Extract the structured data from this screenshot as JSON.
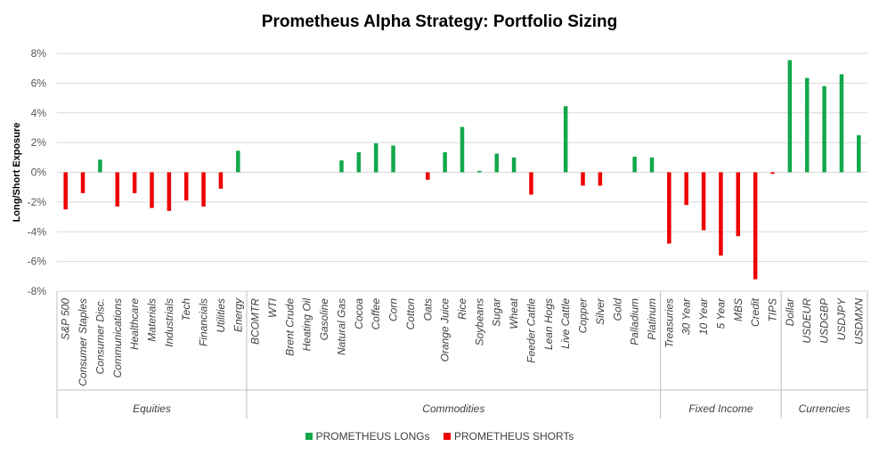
{
  "chart_data": {
    "type": "bar",
    "title": "Prometheus Alpha Strategy: Portfolio Sizing",
    "ylabel": "Long/Short Exposure",
    "ylim": [
      -8,
      8
    ],
    "yticks": [
      8,
      6,
      4,
      2,
      0,
      -2,
      -4,
      -6,
      -8
    ],
    "ytick_labels": [
      "8%",
      "6%",
      "4%",
      "2%",
      "0%",
      "-2%",
      "-4%",
      "-6%",
      "-8%"
    ],
    "grid": true,
    "legend_position": "bottom",
    "colors": {
      "long": "#12a84a",
      "short": "#ee0000"
    },
    "series": [
      {
        "name": "PROMETHEUS LONGs",
        "color": "#12a84a"
      },
      {
        "name": "PROMETHEUS SHORTs",
        "color": "#ee0000"
      }
    ],
    "categories": [
      "S&P 500",
      "Consumer Staples",
      "Consumer Disc.",
      "Communications",
      "Healthcare",
      "Materials",
      "Industrials",
      "Tech",
      "Financials",
      "Utilities",
      "Energy",
      "BCOMTR",
      "WTI",
      "Brent Crude",
      "Heating Oil",
      "Gasoline",
      "Natural Gas",
      "Cocoa",
      "Coffee",
      "Corn",
      "Cotton",
      "Oats",
      "Orange Juice",
      "Rice",
      "Soybeans",
      "Sugar",
      "Wheat",
      "Feeder Cattle",
      "Lean Hogs",
      "Live Cattle",
      "Copper",
      "Silver",
      "Gold",
      "Palladium",
      "Platinum",
      "Treasuries",
      "30 Year",
      "10 Year",
      "5 Year",
      "MBS",
      "Credit",
      "TIPS",
      "Dollar",
      "USDEUR",
      "USDGBP",
      "USDJPY",
      "USDMXN"
    ],
    "values": [
      -2.5,
      -1.4,
      0.85,
      -2.3,
      -1.4,
      -2.4,
      -2.6,
      -1.9,
      -2.3,
      -1.1,
      1.45,
      0,
      0,
      0,
      0,
      0,
      0.8,
      1.35,
      1.95,
      1.8,
      0,
      -0.5,
      1.35,
      3.05,
      0.1,
      1.25,
      1.0,
      -1.5,
      0,
      4.45,
      -0.9,
      -0.9,
      0,
      1.05,
      1.0,
      -4.8,
      -2.2,
      -3.9,
      -5.6,
      -4.3,
      -7.2,
      -0.1,
      7.55,
      6.35,
      5.8,
      6.6,
      2.5
    ],
    "groups": [
      {
        "label": "Equities",
        "start": 0,
        "end": 10
      },
      {
        "label": "Commodities",
        "start": 11,
        "end": 34
      },
      {
        "label": "Fixed Income",
        "start": 35,
        "end": 41
      },
      {
        "label": "Currencies",
        "start": 42,
        "end": 46
      }
    ]
  }
}
